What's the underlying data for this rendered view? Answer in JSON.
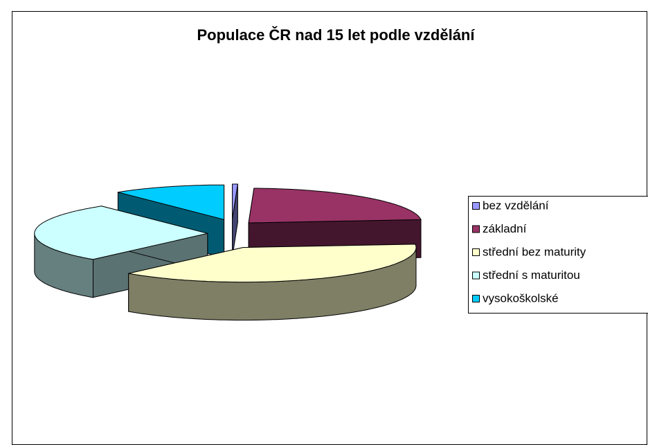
{
  "chart_data": {
    "type": "pie3d",
    "title": "Populace ČR nad 15 let podle vzdělání",
    "categories": [
      "bez vzdělání",
      "základní",
      "střední bez maturity",
      "střední s maturitou",
      "vysokoškolské"
    ],
    "values": [
      0.5,
      23,
      38,
      28,
      10.5
    ],
    "colors": [
      "#9999ff",
      "#993366",
      "#ffffcc",
      "#ccffff",
      "#00ccff"
    ],
    "legend": "right"
  }
}
